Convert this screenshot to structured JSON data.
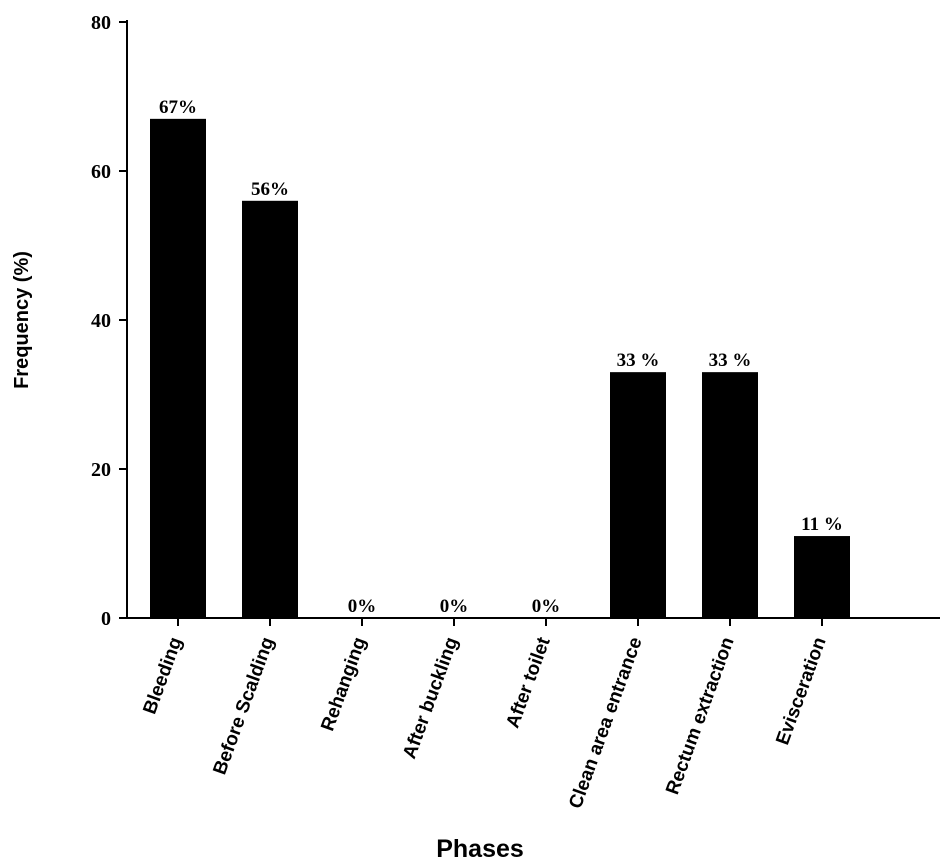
{
  "chart_data": {
    "type": "bar",
    "title": "",
    "xlabel": "Phases",
    "ylabel": "Frequency (%)",
    "ylim": [
      0,
      80
    ],
    "yticks": [
      "0",
      "20",
      "40",
      "60",
      "80"
    ],
    "categories": [
      "Bleeding",
      "Before Scalding",
      "Rehanging",
      "After buckling",
      "After toilet",
      "Clean area entrance",
      "Rectum extraction",
      "Evisceration"
    ],
    "values": [
      67,
      56,
      0,
      0,
      0,
      33,
      33,
      11
    ],
    "data_labels": [
      "67%",
      "56%",
      "0%",
      "0%",
      "0%",
      "33 %",
      "33 %",
      "11 %"
    ],
    "grid": false,
    "bar_color": "#000000"
  }
}
